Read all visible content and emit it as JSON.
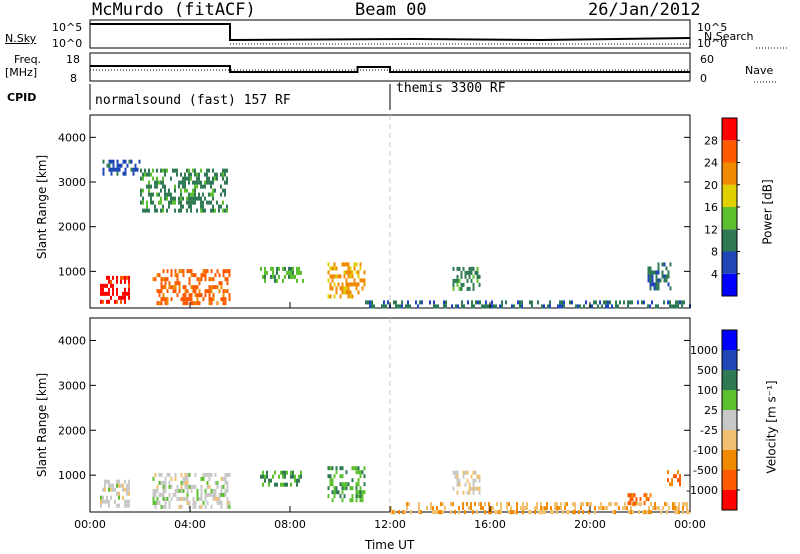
{
  "header": {
    "station": "McMurdo (fitACF)",
    "beam": "Beam 00",
    "date": "26/Jan/2012"
  },
  "top_panels": {
    "nsky_label": "N.Sky",
    "nsearch_label": "N.Search",
    "count_ticks": [
      "10^5",
      "10^0"
    ],
    "freq_label": "Freq.",
    "freq_unit": "[MHz]",
    "freq_ticks": [
      "18",
      "8"
    ],
    "nave_label": "Nave",
    "nave_ticks": [
      "60",
      "0"
    ],
    "cpid_label": "CPID",
    "cpid_segments": [
      "normalsound (fast) 157 RF",
      "themis 3300 RF"
    ]
  },
  "colors": {
    "power_scale": [
      "#0000ff",
      "#1e46b4",
      "#2f7a55",
      "#5cc02e",
      "#e0d000",
      "#f08a00",
      "#ff5a00",
      "#ff0000"
    ],
    "velocity_scale": [
      "#ff0000",
      "#ff5a00",
      "#f08a00",
      "#f0c070",
      "#c8c8c8",
      "#5cc02e",
      "#2f7a55",
      "#1e46b4",
      "#0000ff"
    ],
    "ground_scatter": "#808080",
    "missing": "#ffffff"
  },
  "chart_data": [
    {
      "type": "heatmap",
      "title": "Power",
      "xlabel": "Time UT",
      "ylabel": "Slant Range [km]",
      "x_ticks": [
        "00:00",
        "04:00",
        "08:00",
        "12:00",
        "16:00",
        "20:00",
        "00:00"
      ],
      "xlim": [
        0,
        24
      ],
      "y_ticks": [
        "1000",
        "2000",
        "3000",
        "4000"
      ],
      "ylim": [
        180,
        4500
      ],
      "colorbar": {
        "label": "Power [dB]",
        "ticks": [
          "4",
          "8",
          "12",
          "16",
          "20",
          "24",
          "28"
        ],
        "range": [
          0,
          30
        ]
      },
      "regions": [
        {
          "t": [
            0.4,
            1.6
          ],
          "r": [
            300,
            900
          ],
          "value": 28
        },
        {
          "t": [
            2.5,
            5.6
          ],
          "r": [
            250,
            1050
          ],
          "value": 24
        },
        {
          "t": [
            0.5,
            2.0
          ],
          "r": [
            3200,
            3500
          ],
          "value": 6
        },
        {
          "t": [
            2.0,
            5.5
          ],
          "r": [
            2400,
            3300
          ],
          "value": 10
        },
        {
          "t": [
            6.8,
            8.5
          ],
          "r": [
            750,
            1100
          ],
          "value": 12
        },
        {
          "t": [
            9.5,
            11.0
          ],
          "r": [
            400,
            1200
          ],
          "value": 20
        },
        {
          "t": [
            11.0,
            24.0
          ],
          "r": [
            180,
            350
          ],
          "value": 8
        },
        {
          "t": [
            14.5,
            15.6
          ],
          "r": [
            600,
            1100
          ],
          "value": 10
        },
        {
          "t": [
            22.3,
            23.2
          ],
          "r": [
            600,
            1200
          ],
          "value": 8
        }
      ]
    },
    {
      "type": "heatmap",
      "title": "Velocity",
      "xlabel": "Time UT",
      "ylabel": "Slant Range [km]",
      "x_ticks": [
        "00:00",
        "04:00",
        "08:00",
        "12:00",
        "16:00",
        "20:00",
        "00:00"
      ],
      "xlim": [
        0,
        24
      ],
      "y_ticks": [
        "1000",
        "2000",
        "3000",
        "4000"
      ],
      "ylim": [
        180,
        4500
      ],
      "colorbar": {
        "label": "Velocity [m s⁻¹]",
        "ticks": [
          "1000",
          "500",
          "100",
          "25",
          "-25",
          "-100",
          "-500",
          "-1000"
        ],
        "range": [
          -1000,
          1000
        ]
      },
      "regions": [
        {
          "t": [
            0.4,
            1.6
          ],
          "r": [
            300,
            900
          ],
          "value": 0
        },
        {
          "t": [
            2.5,
            5.6
          ],
          "r": [
            250,
            1050
          ],
          "value": 0
        },
        {
          "t": [
            6.8,
            8.5
          ],
          "r": [
            750,
            1100
          ],
          "value": 300
        },
        {
          "t": [
            9.5,
            11.0
          ],
          "r": [
            400,
            1200
          ],
          "value": 300
        },
        {
          "t": [
            12.0,
            24.0
          ],
          "r": [
            180,
            400
          ],
          "value": -300
        },
        {
          "t": [
            14.5,
            15.6
          ],
          "r": [
            600,
            1100
          ],
          "value": -100
        },
        {
          "t": [
            21.5,
            22.5
          ],
          "r": [
            400,
            600
          ],
          "value": -600
        },
        {
          "t": [
            23.0,
            23.6
          ],
          "r": [
            800,
            1200
          ],
          "value": -600
        }
      ]
    }
  ],
  "xaxis_label": "Time UT"
}
